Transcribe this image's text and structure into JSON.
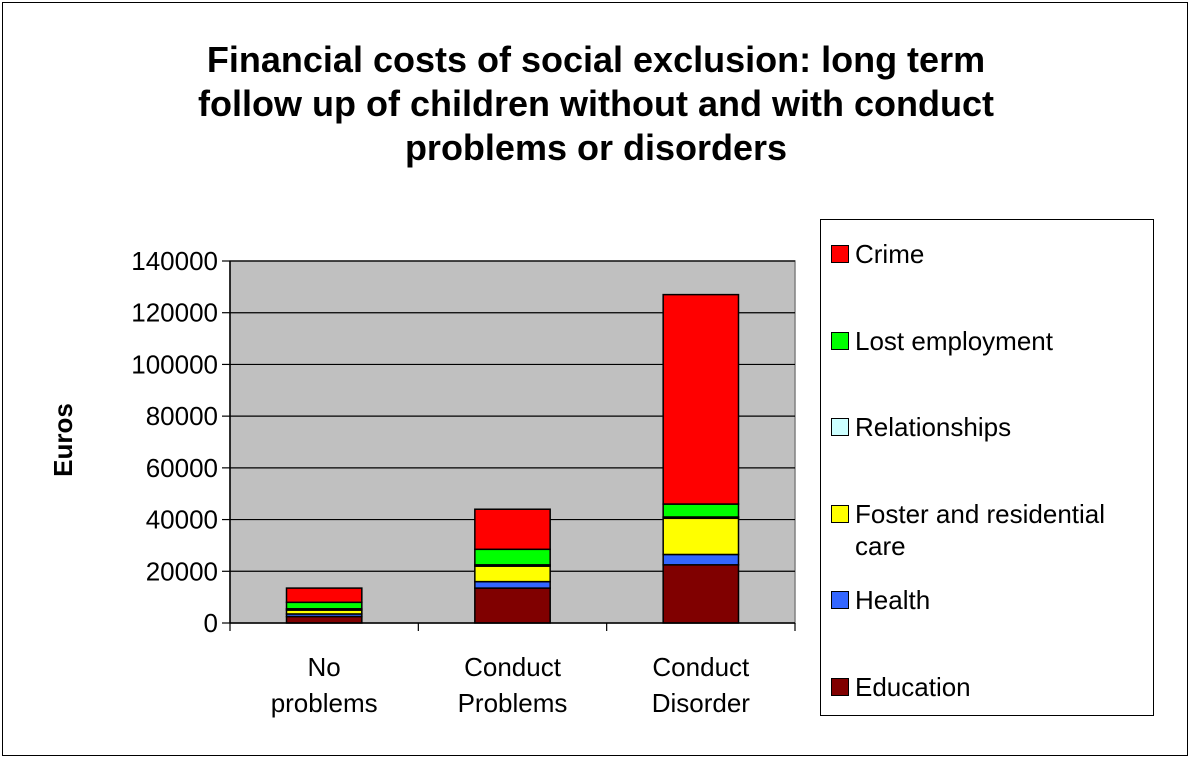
{
  "chart_data": {
    "type": "bar",
    "stacked": true,
    "title": "Financial costs of social exclusion: long term follow up of children without and with conduct problems or disorders",
    "title_lines": [
      "Financial costs of social exclusion: long term",
      "follow up of children without and with conduct",
      "problems or disorders"
    ],
    "ylabel": "Euros",
    "xlabel": "",
    "ylim": [
      0,
      140000
    ],
    "yticks": [
      0,
      20000,
      40000,
      60000,
      80000,
      100000,
      120000,
      140000
    ],
    "categories": [
      [
        "No",
        "problems"
      ],
      [
        "Conduct",
        "Problems"
      ],
      [
        "Conduct",
        "Disorder"
      ]
    ],
    "grid": true,
    "legend_position": "right",
    "series": [
      {
        "name": "Education",
        "color": "#800000",
        "values": [
          2500,
          13500,
          22500
        ]
      },
      {
        "name": "Health",
        "color": "#3366FF",
        "values": [
          1000,
          2500,
          4000
        ]
      },
      {
        "name": "Foster and residential care",
        "color": "#FFFF00",
        "values": [
          1500,
          6000,
          14000
        ]
      },
      {
        "name": "Relationships",
        "color": "#CCFFFF",
        "values": [
          500,
          500,
          500
        ]
      },
      {
        "name": "Lost employment",
        "color": "#00FF00",
        "values": [
          2500,
          6000,
          5000
        ]
      },
      {
        "name": "Crime",
        "color": "#FF0000",
        "values": [
          5500,
          15500,
          81000
        ]
      }
    ],
    "legend_order": [
      "Crime",
      "Lost employment",
      "Relationships",
      "Foster and residential care",
      "Health",
      "Education"
    ],
    "plot_background": "#C0C0C0"
  }
}
